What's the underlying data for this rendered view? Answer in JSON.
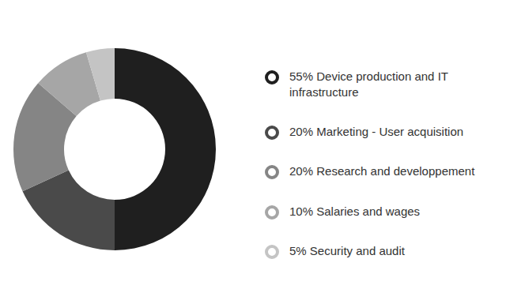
{
  "chart_data": {
    "type": "donut",
    "categories": [
      "Device production and IT infrastructure",
      "Marketing - User acquisition",
      "Research and developpement",
      "Salaries and wages",
      "Security and audit"
    ],
    "values": [
      55,
      20,
      20,
      10,
      5
    ],
    "value_labels": [
      "55%",
      "20%",
      "20%",
      "10%",
      "5%"
    ],
    "colors": [
      "#1f1f1f",
      "#4a4a4a",
      "#858585",
      "#a6a6a6",
      "#c4c4c4"
    ],
    "legend": "right"
  }
}
